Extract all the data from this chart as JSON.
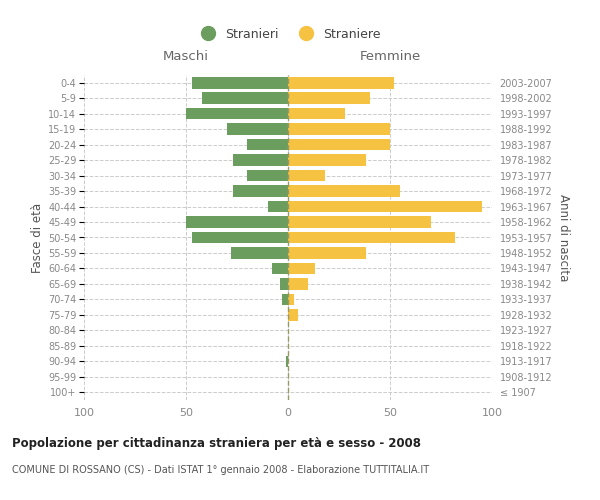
{
  "age_groups": [
    "100+",
    "95-99",
    "90-94",
    "85-89",
    "80-84",
    "75-79",
    "70-74",
    "65-69",
    "60-64",
    "55-59",
    "50-54",
    "45-49",
    "40-44",
    "35-39",
    "30-34",
    "25-29",
    "20-24",
    "15-19",
    "10-14",
    "5-9",
    "0-4"
  ],
  "birth_years": [
    "≤ 1907",
    "1908-1912",
    "1913-1917",
    "1918-1922",
    "1923-1927",
    "1928-1932",
    "1933-1937",
    "1938-1942",
    "1943-1947",
    "1948-1952",
    "1953-1957",
    "1958-1962",
    "1963-1967",
    "1968-1972",
    "1973-1977",
    "1978-1982",
    "1983-1987",
    "1988-1992",
    "1993-1997",
    "1998-2002",
    "2003-2007"
  ],
  "maschi": [
    0,
    0,
    1,
    0,
    0,
    0,
    3,
    4,
    8,
    28,
    47,
    50,
    10,
    27,
    20,
    27,
    20,
    30,
    50,
    42,
    47
  ],
  "femmine": [
    0,
    0,
    0,
    0,
    0,
    5,
    3,
    10,
    13,
    38,
    82,
    70,
    95,
    55,
    18,
    38,
    50,
    50,
    28,
    40,
    52
  ],
  "color_maschi": "#6b9e5e",
  "color_femmine": "#f5c242",
  "title1": "Popolazione per cittadinanza straniera per età e sesso - 2008",
  "title2": "COMUNE DI ROSSANO (CS) - Dati ISTAT 1° gennaio 2008 - Elaborazione TUTTITALIA.IT",
  "legend_maschi": "Stranieri",
  "legend_femmine": "Straniere",
  "ylabel_left": "Fasce di età",
  "ylabel_right": "Anni di nascita",
  "xlim": 100,
  "background_color": "#ffffff",
  "grid_color": "#cccccc",
  "header_maschi": "Maschi",
  "header_femmine": "Femmine",
  "tick_color": "#888888",
  "label_color": "#555555"
}
